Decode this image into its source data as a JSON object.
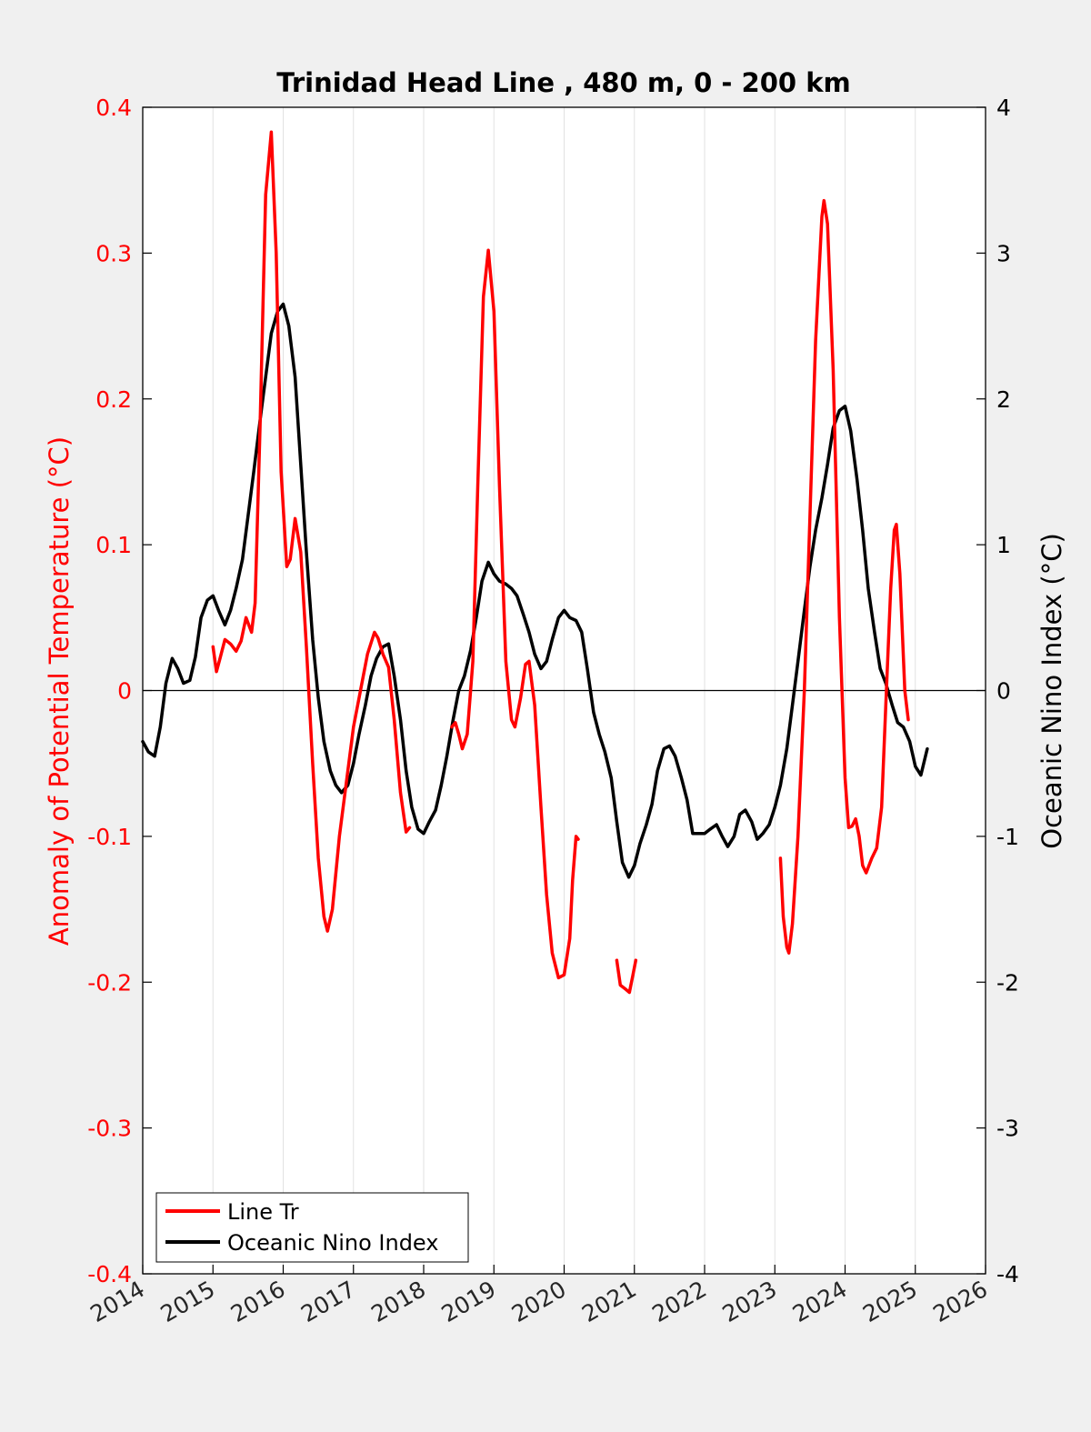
{
  "chart_data": {
    "type": "line",
    "title": "Trinidad Head Line , 480 m, 0 - 200 km",
    "xlabel": "",
    "ylabel_left": "Anomaly of Potential Temperature (°C)",
    "ylabel_right": "Oceanic Nino Index (°C)",
    "xlim": [
      2014,
      2026
    ],
    "ylim_left": [
      -0.4,
      0.4
    ],
    "ylim_right": [
      -4,
      4
    ],
    "x_ticks": [
      "2014",
      "2015",
      "2016",
      "2017",
      "2018",
      "2019",
      "2020",
      "2021",
      "2022",
      "2023",
      "2024",
      "2025",
      "2026"
    ],
    "y_left_ticks": [
      "0.4",
      "0.3",
      "0.2",
      "0.1",
      "0",
      "-0.1",
      "-0.2",
      "-0.3",
      "-0.4"
    ],
    "y_right_ticks": [
      "4",
      "3",
      "2",
      "1",
      "0",
      "-1",
      "-2",
      "-3",
      "-4"
    ],
    "grid": "vertical",
    "zero_line": true,
    "legend_position": "bottom-left",
    "colors": {
      "line_tr": "#ff0000",
      "oni": "#000000",
      "left_axis": "#ff0000",
      "right_axis": "#000000"
    },
    "series": [
      {
        "name": "Line Tr",
        "axis": "left",
        "segments": [
          [
            [
              2015.0,
              0.03
            ],
            [
              2015.05,
              0.013
            ],
            [
              2015.1,
              0.022
            ],
            [
              2015.17,
              0.035
            ],
            [
              2015.25,
              0.032
            ],
            [
              2015.33,
              0.027
            ],
            [
              2015.4,
              0.034
            ],
            [
              2015.47,
              0.05
            ],
            [
              2015.55,
              0.04
            ],
            [
              2015.6,
              0.06
            ],
            [
              2015.67,
              0.18
            ],
            [
              2015.75,
              0.34
            ],
            [
              2015.83,
              0.383
            ],
            [
              2015.9,
              0.3
            ],
            [
              2015.97,
              0.15
            ],
            [
              2016.05,
              0.085
            ],
            [
              2016.1,
              0.09
            ],
            [
              2016.17,
              0.118
            ],
            [
              2016.25,
              0.095
            ],
            [
              2016.33,
              0.03
            ],
            [
              2016.42,
              -0.05
            ],
            [
              2016.5,
              -0.115
            ],
            [
              2016.58,
              -0.155
            ],
            [
              2016.63,
              -0.165
            ],
            [
              2016.7,
              -0.15
            ],
            [
              2016.8,
              -0.1
            ],
            [
              2016.92,
              -0.055
            ],
            [
              2017.0,
              -0.025
            ],
            [
              2017.1,
              0.0
            ],
            [
              2017.2,
              0.025
            ],
            [
              2017.3,
              0.04
            ],
            [
              2017.35,
              0.036
            ],
            [
              2017.42,
              0.025
            ],
            [
              2017.5,
              0.016
            ],
            [
              2017.58,
              -0.02
            ],
            [
              2017.67,
              -0.07
            ],
            [
              2017.75,
              -0.097
            ],
            [
              2017.8,
              -0.094
            ]
          ],
          [
            [
              2018.4,
              -0.025
            ],
            [
              2018.45,
              -0.022
            ],
            [
              2018.5,
              -0.03
            ],
            [
              2018.55,
              -0.04
            ],
            [
              2018.62,
              -0.03
            ],
            [
              2018.7,
              0.02
            ],
            [
              2018.77,
              0.14
            ],
            [
              2018.85,
              0.27
            ],
            [
              2018.92,
              0.302
            ],
            [
              2019.0,
              0.26
            ],
            [
              2019.08,
              0.14
            ],
            [
              2019.17,
              0.02
            ],
            [
              2019.25,
              -0.02
            ],
            [
              2019.3,
              -0.025
            ],
            [
              2019.38,
              -0.005
            ],
            [
              2019.45,
              0.018
            ],
            [
              2019.5,
              0.02
            ],
            [
              2019.58,
              -0.01
            ],
            [
              2019.67,
              -0.08
            ],
            [
              2019.75,
              -0.14
            ],
            [
              2019.83,
              -0.18
            ],
            [
              2019.92,
              -0.197
            ],
            [
              2020.0,
              -0.195
            ],
            [
              2020.08,
              -0.17
            ],
            [
              2020.12,
              -0.13
            ],
            [
              2020.17,
              -0.1
            ],
            [
              2020.2,
              -0.102
            ]
          ],
          [
            [
              2020.75,
              -0.185
            ],
            [
              2020.8,
              -0.202
            ],
            [
              2020.88,
              -0.205
            ],
            [
              2020.93,
              -0.207
            ],
            [
              2020.98,
              -0.195
            ],
            [
              2021.02,
              -0.185
            ]
          ],
          [
            [
              2023.08,
              -0.115
            ],
            [
              2023.12,
              -0.155
            ],
            [
              2023.17,
              -0.176
            ],
            [
              2023.2,
              -0.18
            ],
            [
              2023.25,
              -0.16
            ],
            [
              2023.33,
              -0.1
            ],
            [
              2023.42,
              0.0
            ],
            [
              2023.5,
              0.12
            ],
            [
              2023.58,
              0.24
            ],
            [
              2023.67,
              0.325
            ],
            [
              2023.7,
              0.336
            ],
            [
              2023.75,
              0.32
            ],
            [
              2023.83,
              0.22
            ],
            [
              2023.92,
              0.05
            ],
            [
              2024.0,
              -0.06
            ],
            [
              2024.05,
              -0.094
            ],
            [
              2024.1,
              -0.093
            ],
            [
              2024.15,
              -0.088
            ],
            [
              2024.2,
              -0.1
            ],
            [
              2024.25,
              -0.12
            ],
            [
              2024.3,
              -0.125
            ],
            [
              2024.38,
              -0.115
            ],
            [
              2024.45,
              -0.108
            ],
            [
              2024.52,
              -0.08
            ],
            [
              2024.58,
              -0.01
            ],
            [
              2024.65,
              0.07
            ],
            [
              2024.7,
              0.11
            ],
            [
              2024.73,
              0.114
            ],
            [
              2024.78,
              0.08
            ],
            [
              2024.85,
              0.0
            ],
            [
              2024.9,
              -0.02
            ]
          ]
        ]
      },
      {
        "name": "Oceanic Nino Index",
        "axis": "right",
        "points": [
          [
            2014.0,
            -0.35
          ],
          [
            2014.08,
            -0.42
          ],
          [
            2014.17,
            -0.45
          ],
          [
            2014.25,
            -0.25
          ],
          [
            2014.33,
            0.05
          ],
          [
            2014.42,
            0.22
          ],
          [
            2014.5,
            0.15
          ],
          [
            2014.58,
            0.05
          ],
          [
            2014.67,
            0.07
          ],
          [
            2014.75,
            0.23
          ],
          [
            2014.83,
            0.5
          ],
          [
            2014.92,
            0.62
          ],
          [
            2015.0,
            0.65
          ],
          [
            2015.08,
            0.55
          ],
          [
            2015.17,
            0.45
          ],
          [
            2015.25,
            0.55
          ],
          [
            2015.33,
            0.7
          ],
          [
            2015.42,
            0.9
          ],
          [
            2015.5,
            1.2
          ],
          [
            2015.58,
            1.5
          ],
          [
            2015.67,
            1.85
          ],
          [
            2015.75,
            2.15
          ],
          [
            2015.83,
            2.45
          ],
          [
            2015.92,
            2.6
          ],
          [
            2016.0,
            2.65
          ],
          [
            2016.08,
            2.5
          ],
          [
            2016.17,
            2.15
          ],
          [
            2016.25,
            1.55
          ],
          [
            2016.33,
            0.95
          ],
          [
            2016.42,
            0.35
          ],
          [
            2016.5,
            -0.05
          ],
          [
            2016.58,
            -0.35
          ],
          [
            2016.67,
            -0.55
          ],
          [
            2016.75,
            -0.65
          ],
          [
            2016.83,
            -0.7
          ],
          [
            2016.92,
            -0.65
          ],
          [
            2017.0,
            -0.5
          ],
          [
            2017.08,
            -0.3
          ],
          [
            2017.17,
            -0.1
          ],
          [
            2017.25,
            0.1
          ],
          [
            2017.33,
            0.22
          ],
          [
            2017.42,
            0.3
          ],
          [
            2017.5,
            0.32
          ],
          [
            2017.58,
            0.1
          ],
          [
            2017.67,
            -0.2
          ],
          [
            2017.75,
            -0.55
          ],
          [
            2017.83,
            -0.8
          ],
          [
            2017.92,
            -0.95
          ],
          [
            2018.0,
            -0.98
          ],
          [
            2018.08,
            -0.9
          ],
          [
            2018.17,
            -0.82
          ],
          [
            2018.25,
            -0.65
          ],
          [
            2018.33,
            -0.45
          ],
          [
            2018.42,
            -0.2
          ],
          [
            2018.5,
            0.0
          ],
          [
            2018.58,
            0.1
          ],
          [
            2018.67,
            0.28
          ],
          [
            2018.75,
            0.5
          ],
          [
            2018.83,
            0.75
          ],
          [
            2018.92,
            0.88
          ],
          [
            2019.0,
            0.8
          ],
          [
            2019.08,
            0.75
          ],
          [
            2019.17,
            0.73
          ],
          [
            2019.25,
            0.7
          ],
          [
            2019.33,
            0.65
          ],
          [
            2019.42,
            0.52
          ],
          [
            2019.5,
            0.4
          ],
          [
            2019.58,
            0.25
          ],
          [
            2019.67,
            0.15
          ],
          [
            2019.75,
            0.2
          ],
          [
            2019.83,
            0.35
          ],
          [
            2019.92,
            0.5
          ],
          [
            2020.0,
            0.55
          ],
          [
            2020.08,
            0.5
          ],
          [
            2020.17,
            0.48
          ],
          [
            2020.25,
            0.4
          ],
          [
            2020.33,
            0.15
          ],
          [
            2020.42,
            -0.15
          ],
          [
            2020.5,
            -0.3
          ],
          [
            2020.58,
            -0.42
          ],
          [
            2020.67,
            -0.6
          ],
          [
            2020.75,
            -0.9
          ],
          [
            2020.83,
            -1.18
          ],
          [
            2020.92,
            -1.28
          ],
          [
            2021.0,
            -1.2
          ],
          [
            2021.08,
            -1.05
          ],
          [
            2021.17,
            -0.92
          ],
          [
            2021.25,
            -0.78
          ],
          [
            2021.33,
            -0.55
          ],
          [
            2021.42,
            -0.4
          ],
          [
            2021.5,
            -0.38
          ],
          [
            2021.58,
            -0.45
          ],
          [
            2021.67,
            -0.6
          ],
          [
            2021.75,
            -0.75
          ],
          [
            2021.83,
            -0.98
          ],
          [
            2021.92,
            -0.98
          ],
          [
            2022.0,
            -0.98
          ],
          [
            2022.08,
            -0.95
          ],
          [
            2022.17,
            -0.92
          ],
          [
            2022.25,
            -1.0
          ],
          [
            2022.33,
            -1.07
          ],
          [
            2022.42,
            -1.0
          ],
          [
            2022.5,
            -0.85
          ],
          [
            2022.58,
            -0.82
          ],
          [
            2022.67,
            -0.9
          ],
          [
            2022.75,
            -1.02
          ],
          [
            2022.83,
            -0.98
          ],
          [
            2022.92,
            -0.92
          ],
          [
            2023.0,
            -0.8
          ],
          [
            2023.08,
            -0.65
          ],
          [
            2023.17,
            -0.4
          ],
          [
            2023.25,
            -0.1
          ],
          [
            2023.33,
            0.2
          ],
          [
            2023.42,
            0.55
          ],
          [
            2023.5,
            0.85
          ],
          [
            2023.58,
            1.1
          ],
          [
            2023.67,
            1.32
          ],
          [
            2023.75,
            1.55
          ],
          [
            2023.83,
            1.8
          ],
          [
            2023.92,
            1.92
          ],
          [
            2024.0,
            1.95
          ],
          [
            2024.08,
            1.78
          ],
          [
            2024.17,
            1.45
          ],
          [
            2024.25,
            1.1
          ],
          [
            2024.33,
            0.7
          ],
          [
            2024.42,
            0.4
          ],
          [
            2024.5,
            0.15
          ],
          [
            2024.58,
            0.05
          ],
          [
            2024.67,
            -0.1
          ],
          [
            2024.75,
            -0.22
          ],
          [
            2024.83,
            -0.25
          ],
          [
            2024.92,
            -0.35
          ],
          [
            2025.0,
            -0.52
          ],
          [
            2025.08,
            -0.58
          ],
          [
            2025.17,
            -0.4
          ]
        ]
      }
    ]
  }
}
